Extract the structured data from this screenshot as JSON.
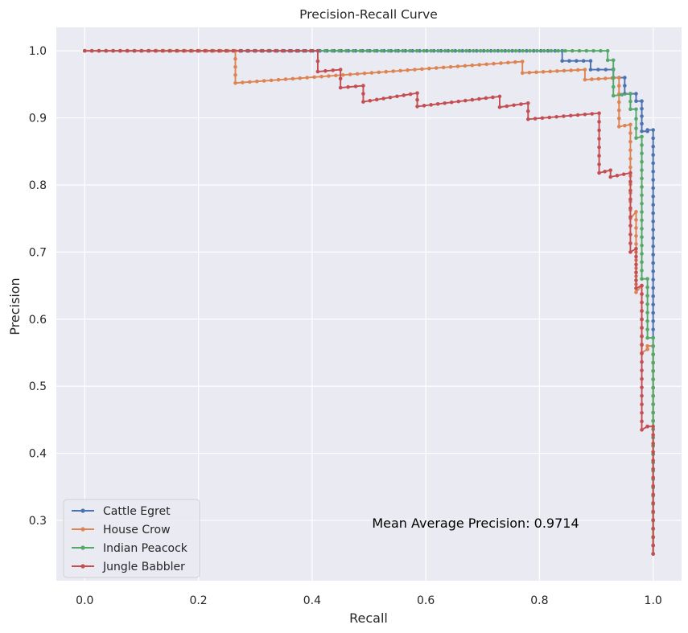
{
  "chart_data": {
    "type": "line",
    "title": "Precision-Recall Curve",
    "xlabel": "Recall",
    "ylabel": "Precision",
    "xlim": [
      -0.05,
      1.05
    ],
    "ylim": [
      0.21,
      1.035
    ],
    "xticks": [
      0.0,
      0.2,
      0.4,
      0.6,
      0.8,
      1.0
    ],
    "xtick_labels": [
      "0.0",
      "0.2",
      "0.4",
      "0.6",
      "0.8",
      "1.0"
    ],
    "yticks": [
      0.3,
      0.4,
      0.5,
      0.6,
      0.7,
      0.8,
      0.9,
      1.0
    ],
    "ytick_labels": [
      "0.3",
      "0.4",
      "0.5",
      "0.6",
      "0.7",
      "0.8",
      "0.9",
      "1.0"
    ],
    "grid": true,
    "legend_position": "lower-left",
    "annotation": "Mean Average Precision: 0.9714",
    "background": "#eaeaf2",
    "series": [
      {
        "name": "Cattle Egret",
        "color": "#4c72b0",
        "x": [
          0.0,
          0.84,
          0.84,
          0.89,
          0.89,
          0.93,
          0.93,
          0.95,
          0.95,
          0.97,
          0.97,
          0.98,
          0.98,
          0.99,
          0.99,
          1.0,
          1.0
        ],
        "y": [
          1.0,
          1.0,
          0.985,
          0.985,
          0.972,
          0.972,
          0.96,
          0.96,
          0.936,
          0.936,
          0.925,
          0.925,
          0.88,
          0.88,
          0.882,
          0.882,
          0.25
        ]
      },
      {
        "name": "House Crow",
        "color": "#dd8452",
        "x": [
          0.0,
          0.265,
          0.265,
          0.77,
          0.77,
          0.88,
          0.88,
          0.94,
          0.94,
          0.96,
          0.96,
          0.97,
          0.97,
          0.98,
          0.98,
          0.99,
          0.99,
          1.0,
          1.0
        ],
        "y": [
          1.0,
          1.0,
          0.952,
          0.984,
          0.967,
          0.972,
          0.957,
          0.96,
          0.887,
          0.89,
          0.75,
          0.76,
          0.64,
          0.65,
          0.55,
          0.555,
          0.56,
          0.56,
          0.25
        ]
      },
      {
        "name": "Indian Peacock",
        "color": "#55a868",
        "x": [
          0.0,
          0.92,
          0.92,
          0.93,
          0.93,
          0.96,
          0.96,
          0.97,
          0.97,
          0.98,
          0.98,
          0.99,
          0.99,
          1.0,
          1.0
        ],
        "y": [
          1.0,
          1.0,
          0.986,
          0.986,
          0.933,
          0.936,
          0.913,
          0.913,
          0.87,
          0.872,
          0.66,
          0.66,
          0.572,
          0.572,
          0.25
        ]
      },
      {
        "name": "Jungle Babbler",
        "color": "#c44e52",
        "x": [
          0.0,
          0.41,
          0.41,
          0.45,
          0.45,
          0.49,
          0.49,
          0.585,
          0.585,
          0.73,
          0.73,
          0.78,
          0.78,
          0.905,
          0.905,
          0.925,
          0.925,
          0.96,
          0.96,
          0.97,
          0.97,
          0.98,
          0.98,
          0.99,
          0.99,
          1.0,
          1.0
        ],
        "y": [
          1.0,
          1.0,
          0.969,
          0.972,
          0.945,
          0.948,
          0.924,
          0.937,
          0.917,
          0.932,
          0.916,
          0.922,
          0.898,
          0.907,
          0.818,
          0.822,
          0.812,
          0.818,
          0.7,
          0.705,
          0.646,
          0.65,
          0.435,
          0.44,
          0.44,
          0.44,
          0.25
        ]
      }
    ]
  }
}
